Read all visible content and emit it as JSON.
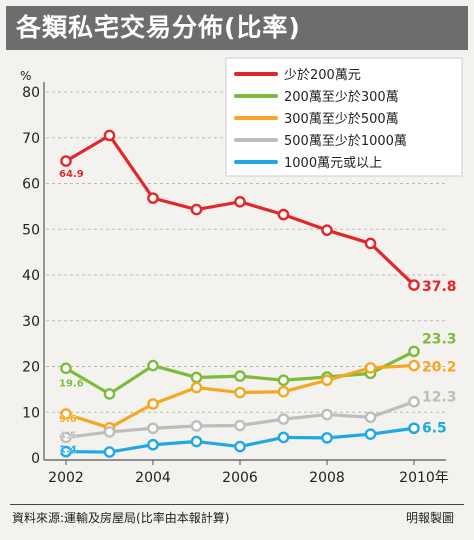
{
  "title": "各類私宅交易分佈(比率)",
  "footer": {
    "source": "資料來源:運輸及房屋局(比率由本報計算)",
    "credit": "明報製圖"
  },
  "colors": {
    "background": "#f4f2ee",
    "title_bar": "#6d6d6d"
  },
  "chart_data": {
    "type": "line",
    "ylabel": "%",
    "xlabel": "",
    "x": [
      2002,
      2003,
      2004,
      2005,
      2006,
      2007,
      2008,
      2009,
      2010
    ],
    "x_ticks": [
      2002,
      2004,
      2006,
      2008,
      2010
    ],
    "x_tick_labels": [
      "2002",
      "2004",
      "2006",
      "2008",
      "2010年"
    ],
    "xlim": [
      2002,
      2010
    ],
    "ylim": [
      0,
      80
    ],
    "y_ticks": [
      0,
      10,
      20,
      30,
      40,
      50,
      60,
      70,
      80
    ],
    "grid": true,
    "legend_position": "top-right",
    "series": [
      {
        "name": "少於200萬元",
        "color": "#e3262a",
        "values": [
          64.9,
          70.5,
          56.8,
          54.3,
          56.0,
          53.2,
          49.8,
          46.9,
          37.8
        ],
        "start_label": "64.9",
        "end_label": "37.8"
      },
      {
        "name": "200萬至少於300萬",
        "color": "#7cbb3b",
        "values": [
          19.6,
          14.0,
          20.2,
          17.6,
          17.9,
          17.0,
          17.7,
          18.5,
          23.3
        ],
        "start_label": "19.6",
        "end_label": "23.3"
      },
      {
        "name": "300萬至少於500萬",
        "color": "#f5a623",
        "values": [
          9.6,
          6.6,
          11.8,
          15.4,
          14.3,
          14.5,
          17.0,
          19.7,
          20.2
        ],
        "start_label": "9.6",
        "end_label": "20.2"
      },
      {
        "name": "500萬至少於1000萬",
        "color": "#bdbdbd",
        "values": [
          4.5,
          5.7,
          6.5,
          7.0,
          7.1,
          8.5,
          9.5,
          8.9,
          12.3
        ],
        "start_label": "4.5",
        "end_label": "12.3"
      },
      {
        "name": "1000萬元或以上",
        "color": "#1ea9e6",
        "values": [
          1.4,
          1.3,
          2.9,
          3.6,
          2.5,
          4.5,
          4.4,
          5.2,
          6.5
        ],
        "start_label": "1.4",
        "end_label": "6.5"
      }
    ]
  }
}
